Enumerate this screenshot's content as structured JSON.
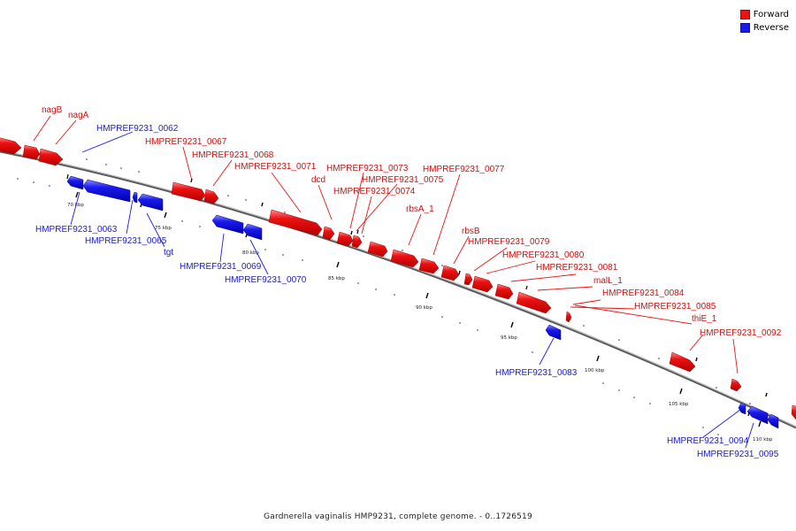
{
  "colors": {
    "forward": "#ee1111",
    "reverse": "#1a1aee",
    "backbone": "#888888"
  },
  "legend": [
    {
      "label": "Forward",
      "color": "#ee1111"
    },
    {
      "label": "Reverse",
      "color": "#1a1aee"
    }
  ],
  "caption": "Gardnerella vaginalis HMP9231, complete genome. - 0..1726519",
  "tick_labels": [
    "70 kbp",
    "75 kbp",
    "80 kbp",
    "85 kbp",
    "90 kbp",
    "95 kbp",
    "100 kbp",
    "105 kbp",
    "110 kbp"
  ],
  "genes": {
    "forward": [
      "nagB",
      "nagA",
      "HMPREF9231_0067",
      "HMPREF9231_0068",
      "HMPREF9231_0071",
      "dcd",
      "HMPREF9231_0073",
      "HMPREF9231_0075",
      "HMPREF9231_0074",
      "rbsA_1",
      "HMPREF9231_0077",
      "rbsB",
      "HMPREF9231_0079",
      "HMPREF9231_0080",
      "HMPREF9231_0081",
      "malL_1",
      "HMPREF9231_0084",
      "HMPREF9231_0085",
      "thiE_1",
      "HMPREF9231_0092"
    ],
    "reverse": [
      "HMPREF9231_0062",
      "HMPREF9231_0063",
      "HMPREF9231_0065",
      "tgt",
      "HMPREF9231_0069",
      "HMPREF9231_0070",
      "HMPREF9231_0083",
      "HMPREF9231_0094",
      "HMPREF9231_0095"
    ]
  }
}
